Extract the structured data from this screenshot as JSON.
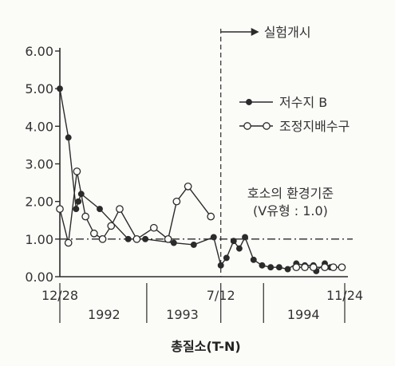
{
  "chart_data": {
    "type": "line",
    "title": "총질소(T-N)",
    "xlabel": "",
    "ylabel": "",
    "ylim": [
      0,
      6
    ],
    "y_ticks": [
      "0.00",
      "1.00",
      "2.00",
      "3.00",
      "4.00",
      "5.00",
      "6.00"
    ],
    "x_ticks": [
      "12/28",
      "7/12",
      "11/24"
    ],
    "year_labels": [
      "1992",
      "1993",
      "1994"
    ],
    "grid": false,
    "legend_position": "right",
    "reference_line": {
      "value": 1.0,
      "label_line1": "호소의 환경기준",
      "label_line2": "(V유형 : 1.0)"
    },
    "start_marker": {
      "x": 0.565,
      "label": "실험개시"
    },
    "series": [
      {
        "name": "저수지 B",
        "marker": "filled-circle",
        "x": [
          0.0,
          0.03,
          0.057,
          0.065,
          0.075,
          0.14,
          0.24,
          0.3,
          0.4,
          0.47,
          0.54,
          0.565,
          0.585,
          0.61,
          0.63,
          0.65,
          0.68,
          0.71,
          0.74,
          0.77,
          0.8,
          0.83,
          0.86,
          0.89,
          0.9,
          0.93,
          0.95
        ],
        "values": [
          5.0,
          3.7,
          1.8,
          2.0,
          2.2,
          1.8,
          1.0,
          1.0,
          0.9,
          0.85,
          1.05,
          0.3,
          0.5,
          0.95,
          0.75,
          1.05,
          0.45,
          0.3,
          0.25,
          0.25,
          0.2,
          0.35,
          0.3,
          0.3,
          0.15,
          0.35,
          0.25
        ]
      },
      {
        "name": "조정지배수구",
        "marker": "open-circle",
        "x": [
          0.0,
          0.03,
          0.06,
          0.09,
          0.12,
          0.15,
          0.18,
          0.21,
          0.27,
          0.33,
          0.38,
          0.41,
          0.45,
          0.53
        ],
        "values": [
          1.8,
          0.9,
          2.8,
          1.6,
          1.15,
          1.0,
          1.35,
          1.8,
          1.0,
          1.3,
          1.0,
          2.0,
          2.4,
          1.6
        ]
      },
      {
        "name": "",
        "marker": "open-circle",
        "x": [
          0.83,
          0.86,
          0.89,
          0.93,
          0.96,
          0.99
        ],
        "values": [
          0.25,
          0.25,
          0.25,
          0.25,
          0.25,
          0.25
        ]
      }
    ],
    "colors": {
      "ink": "#2b2b2b",
      "reference": "#2b2b2b"
    }
  }
}
